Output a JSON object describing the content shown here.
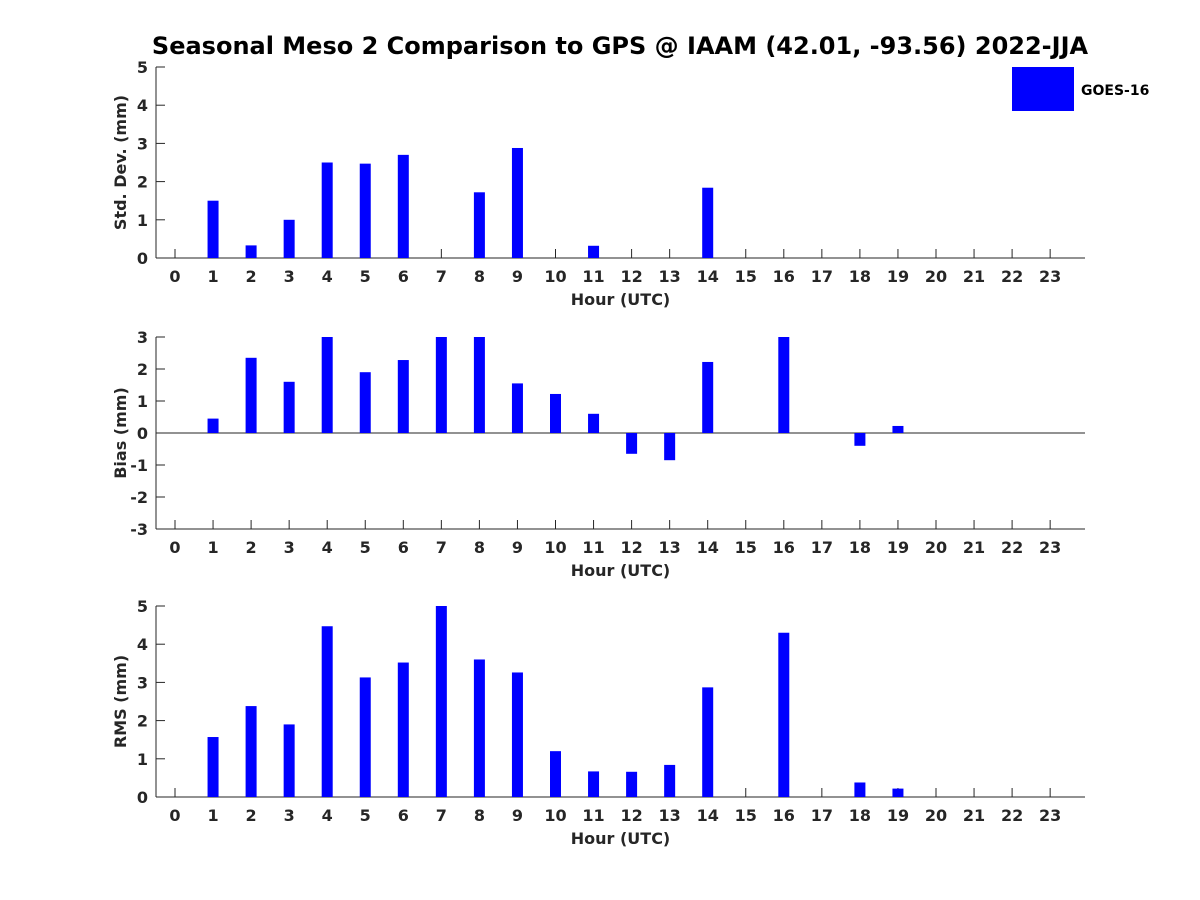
{
  "chart_data": {
    "title": "Seasonal Meso 2 Comparison to GPS @ IAAM (42.01, -93.56) 2022-JJA",
    "type": "bar",
    "legend": {
      "label": "GOES-16",
      "color": "#0000ff",
      "placement": "top-right"
    },
    "categories": [
      "0",
      "1",
      "2",
      "3",
      "4",
      "5",
      "6",
      "7",
      "8",
      "9",
      "10",
      "11",
      "12",
      "13",
      "14",
      "15",
      "16",
      "17",
      "18",
      "19",
      "20",
      "21",
      "22",
      "23"
    ],
    "panels": [
      {
        "id": "std",
        "ylabel": "Std. Dev. (mm)",
        "xlabel": "Hour (UTC)",
        "ylim": [
          0,
          5
        ],
        "yticks": [
          "0",
          "1",
          "2",
          "3",
          "4",
          "5"
        ],
        "values": [
          null,
          1.5,
          0.33,
          1.0,
          2.5,
          2.47,
          2.7,
          null,
          1.72,
          2.88,
          null,
          0.32,
          null,
          null,
          1.84,
          null,
          null,
          null,
          null,
          null,
          null,
          null,
          null,
          null
        ]
      },
      {
        "id": "bias",
        "ylabel": "Bias (mm)",
        "xlabel": "Hour (UTC)",
        "ylim": [
          -3,
          3
        ],
        "yticks": [
          "-3",
          "-2",
          "-1",
          "0",
          "1",
          "2",
          "3"
        ],
        "zero_line": true,
        "values": [
          null,
          0.45,
          2.35,
          1.6,
          3.0,
          1.9,
          2.28,
          3.0,
          3.0,
          1.55,
          1.22,
          0.6,
          -0.65,
          -0.85,
          2.22,
          null,
          3.0,
          null,
          -0.4,
          0.22,
          null,
          null,
          null,
          null
        ]
      },
      {
        "id": "rms",
        "ylabel": "RMS (mm)",
        "xlabel": "Hour (UTC)",
        "ylim": [
          0,
          5
        ],
        "yticks": [
          "0",
          "1",
          "2",
          "3",
          "4",
          "5"
        ],
        "values": [
          null,
          1.57,
          2.38,
          1.9,
          4.47,
          3.13,
          3.52,
          5.0,
          3.6,
          3.26,
          1.2,
          0.67,
          0.66,
          0.84,
          2.87,
          null,
          4.3,
          null,
          0.38,
          0.22,
          null,
          null,
          null,
          null
        ]
      }
    ]
  }
}
